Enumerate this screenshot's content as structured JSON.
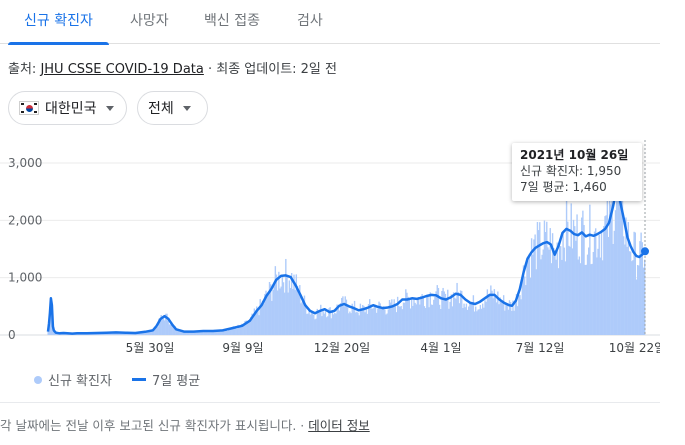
{
  "tabs": [
    {
      "label": "신규 확진자",
      "active": true
    },
    {
      "label": "사망자",
      "active": false
    },
    {
      "label": "백신 접종",
      "active": false
    },
    {
      "label": "검사",
      "active": false
    }
  ],
  "source": {
    "prefix": "출처: ",
    "link_text": "JHU CSSE COVID-19 Data",
    "suffix": " · 최종 업데이트: 2일 전"
  },
  "filters": {
    "region": "대한민국",
    "period": "전체"
  },
  "colors": {
    "accent": "#1a73e8",
    "bars": "#aecbfa"
  },
  "chart_data": {
    "type": "bar",
    "y_ticks": [
      "3,000",
      "2,000",
      "1,000",
      "0"
    ],
    "ylim": [
      0,
      3000
    ],
    "x_ticks": [
      "5월 30일",
      "9월 9일",
      "12월 20일",
      "4월 1일",
      "7월 12일",
      "10월 22일"
    ],
    "series": [
      {
        "name": "신규 확진자",
        "kind": "bar"
      },
      {
        "name": "7일 평균",
        "kind": "line"
      }
    ],
    "avg_points": [
      [
        0,
        60
      ],
      [
        1,
        200
      ],
      [
        2,
        380
      ],
      [
        3,
        640
      ],
      [
        4,
        520
      ],
      [
        5,
        150
      ],
      [
        6,
        80
      ],
      [
        8,
        40
      ],
      [
        12,
        30
      ],
      [
        16,
        35
      ],
      [
        20,
        30
      ],
      [
        25,
        25
      ],
      [
        30,
        30
      ],
      [
        40,
        30
      ],
      [
        50,
        35
      ],
      [
        60,
        40
      ],
      [
        70,
        45
      ],
      [
        80,
        40
      ],
      [
        90,
        35
      ],
      [
        100,
        55
      ],
      [
        108,
        80
      ],
      [
        112,
        160
      ],
      [
        116,
        280
      ],
      [
        120,
        330
      ],
      [
        124,
        280
      ],
      [
        128,
        180
      ],
      [
        132,
        100
      ],
      [
        140,
        60
      ],
      [
        150,
        60
      ],
      [
        160,
        70
      ],
      [
        170,
        70
      ],
      [
        180,
        80
      ],
      [
        190,
        120
      ],
      [
        200,
        160
      ],
      [
        208,
        250
      ],
      [
        215,
        420
      ],
      [
        220,
        520
      ],
      [
        225,
        680
      ],
      [
        230,
        800
      ],
      [
        235,
        960
      ],
      [
        240,
        1030
      ],
      [
        245,
        1040
      ],
      [
        250,
        1010
      ],
      [
        255,
        870
      ],
      [
        260,
        700
      ],
      [
        265,
        520
      ],
      [
        270,
        420
      ],
      [
        275,
        380
      ],
      [
        280,
        420
      ],
      [
        285,
        450
      ],
      [
        290,
        400
      ],
      [
        295,
        420
      ],
      [
        300,
        510
      ],
      [
        305,
        540
      ],
      [
        310,
        500
      ],
      [
        315,
        470
      ],
      [
        320,
        430
      ],
      [
        325,
        450
      ],
      [
        330,
        480
      ],
      [
        335,
        520
      ],
      [
        340,
        490
      ],
      [
        345,
        470
      ],
      [
        350,
        480
      ],
      [
        355,
        500
      ],
      [
        360,
        540
      ],
      [
        365,
        620
      ],
      [
        370,
        620
      ],
      [
        375,
        640
      ],
      [
        380,
        630
      ],
      [
        385,
        650
      ],
      [
        390,
        680
      ],
      [
        395,
        700
      ],
      [
        400,
        690
      ],
      [
        405,
        640
      ],
      [
        410,
        620
      ],
      [
        415,
        660
      ],
      [
        420,
        720
      ],
      [
        425,
        700
      ],
      [
        430,
        620
      ],
      [
        435,
        560
      ],
      [
        440,
        540
      ],
      [
        445,
        580
      ],
      [
        450,
        640
      ],
      [
        455,
        700
      ],
      [
        460,
        700
      ],
      [
        465,
        620
      ],
      [
        470,
        560
      ],
      [
        475,
        520
      ],
      [
        478,
        510
      ],
      [
        482,
        600
      ],
      [
        486,
        800
      ],
      [
        490,
        1100
      ],
      [
        494,
        1330
      ],
      [
        498,
        1440
      ],
      [
        502,
        1520
      ],
      [
        506,
        1560
      ],
      [
        510,
        1600
      ],
      [
        514,
        1620
      ],
      [
        518,
        1580
      ],
      [
        522,
        1400
      ],
      [
        526,
        1560
      ],
      [
        530,
        1780
      ],
      [
        534,
        1850
      ],
      [
        538,
        1820
      ],
      [
        542,
        1760
      ],
      [
        546,
        1740
      ],
      [
        550,
        1790
      ],
      [
        554,
        1720
      ],
      [
        558,
        1750
      ],
      [
        562,
        1730
      ],
      [
        566,
        1760
      ],
      [
        570,
        1800
      ],
      [
        574,
        1850
      ],
      [
        578,
        1960
      ],
      [
        582,
        2240
      ],
      [
        585,
        2480
      ],
      [
        588,
        2440
      ],
      [
        591,
        2200
      ],
      [
        594,
        1960
      ],
      [
        597,
        1700
      ],
      [
        600,
        1560
      ],
      [
        603,
        1450
      ],
      [
        606,
        1380
      ],
      [
        609,
        1360
      ],
      [
        612,
        1400
      ],
      [
        615,
        1460
      ]
    ],
    "tooltip": {
      "title": "2021년 10월 26일",
      "daily_label": "신규 확진자: ",
      "daily_value": "1,950",
      "avg_label": "7일 평균: ",
      "avg_value": "1,460"
    }
  },
  "legend": {
    "bar_label": "신규 확진자",
    "line_label": "7일 평균"
  },
  "footer": {
    "text": "각 날짜에는 전날 이후 보고된 신규 확진자가 표시됩니다. · ",
    "link_text": "데이터 정보"
  }
}
